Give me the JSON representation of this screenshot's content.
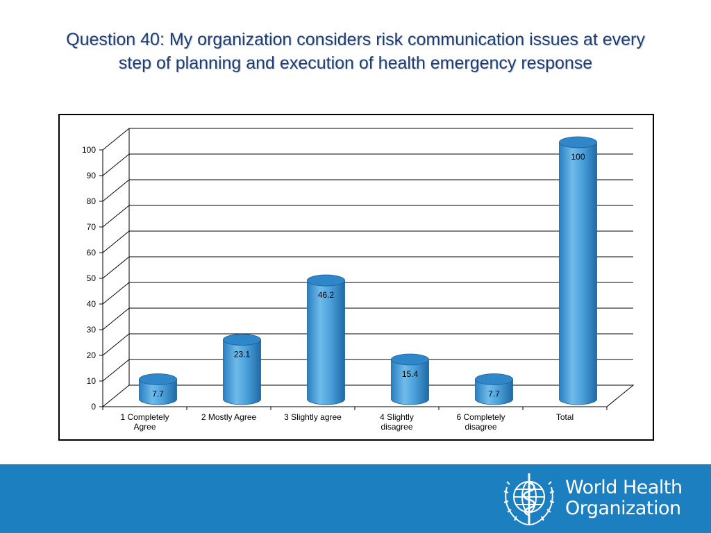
{
  "slide": {
    "title_line1": "Question 40: My organization considers risk communication issues at every",
    "title_line2": "step of planning and execution of health emergency response"
  },
  "brand": {
    "name_line1": "World Health",
    "name_line2": "Organization",
    "footer_color": "#1b7fc0",
    "logo_icon": "who-emblem-icon"
  },
  "chart_data": {
    "type": "bar",
    "style": "3d-cylinder",
    "categories": [
      [
        "1 Completely",
        "Agree"
      ],
      [
        "2 Mostly Agree"
      ],
      [
        "3 Slightly agree"
      ],
      [
        "4 Slightly",
        "disagree"
      ],
      [
        "6 Completely",
        "disagree"
      ],
      [
        "Total"
      ]
    ],
    "values": [
      7.7,
      23.1,
      46.2,
      15.4,
      7.7,
      100
    ],
    "data_labels": [
      "7.7",
      "23.1",
      "46.2",
      "15.4",
      "7.7",
      "100"
    ],
    "y_ticks": [
      0,
      10,
      20,
      30,
      40,
      50,
      60,
      70,
      80,
      90,
      100
    ],
    "ylim": [
      0,
      100
    ],
    "grid": true,
    "bar_color": "#4ea3dc",
    "title": "",
    "xlabel": "",
    "ylabel": ""
  }
}
